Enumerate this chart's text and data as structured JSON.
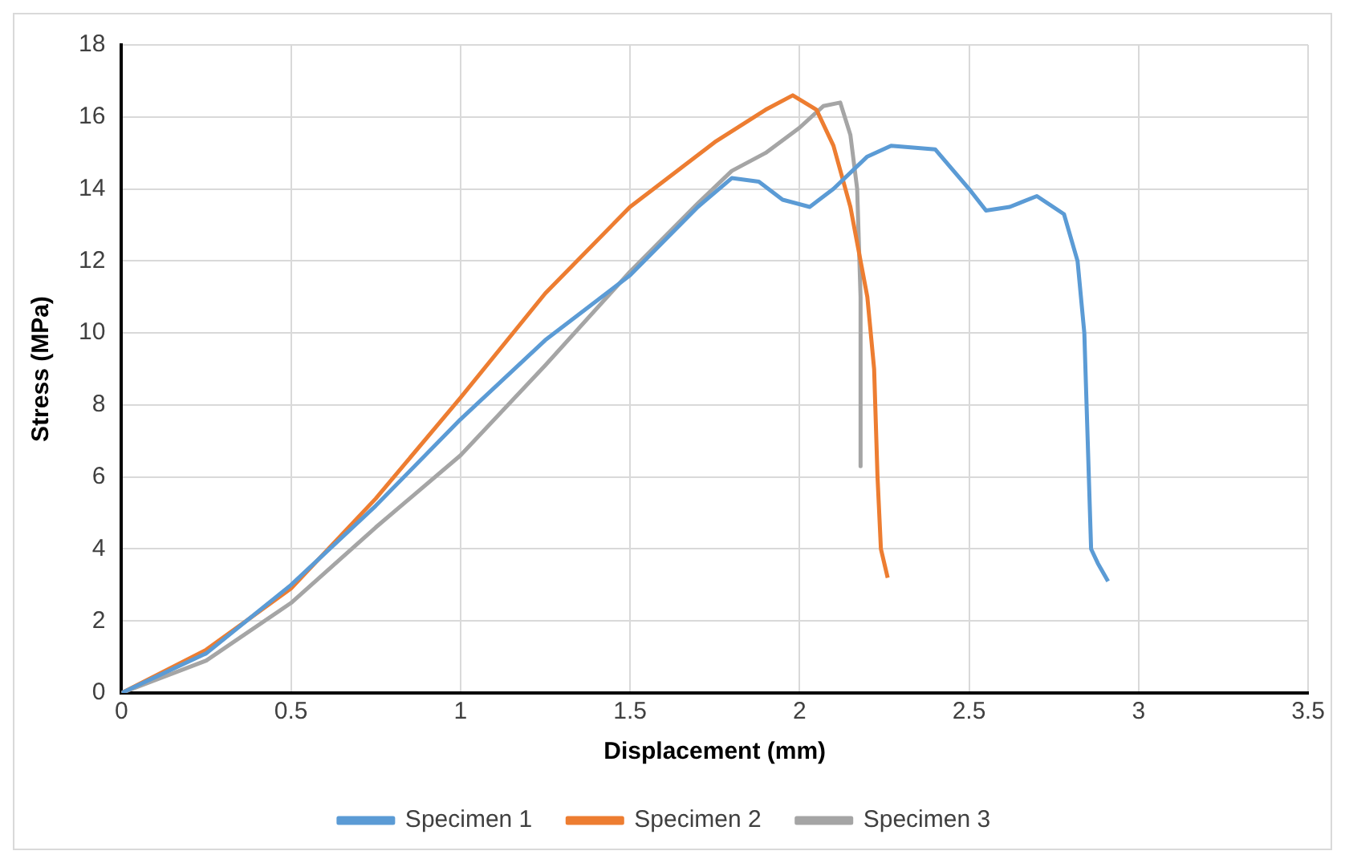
{
  "chart_data": {
    "type": "line",
    "xlabel": "Displacement (mm)",
    "ylabel": "Stress (MPa)",
    "xlim": [
      0,
      3.5
    ],
    "xticks": [
      0,
      0.5,
      1,
      1.5,
      2,
      2.5,
      3,
      3.5
    ],
    "ylim": [
      0,
      18
    ],
    "yticks": [
      0,
      2,
      4,
      6,
      8,
      10,
      12,
      14,
      16,
      18
    ],
    "grid": true,
    "legend": "bottom",
    "marker": "none",
    "line_style": "solid",
    "series": [
      {
        "name": "Specimen 1",
        "color": "#5b9bd5",
        "x": [
          0,
          0.25,
          0.5,
          0.75,
          1.0,
          1.25,
          1.5,
          1.7,
          1.8,
          1.88,
          1.95,
          2.03,
          2.1,
          2.2,
          2.27,
          2.4,
          2.5,
          2.55,
          2.62,
          2.7,
          2.78,
          2.82,
          2.84,
          2.85,
          2.86,
          2.88,
          2.91
        ],
        "values": [
          0,
          1.1,
          3.0,
          5.2,
          7.6,
          9.8,
          11.6,
          13.5,
          14.3,
          14.2,
          13.7,
          13.5,
          14.0,
          14.9,
          15.2,
          15.1,
          14.0,
          13.4,
          13.5,
          13.8,
          13.3,
          12.0,
          10.0,
          7.0,
          4.0,
          3.6,
          3.1
        ]
      },
      {
        "name": "Specimen 2",
        "color": "#ed7d31",
        "x": [
          0,
          0.25,
          0.5,
          0.75,
          1.0,
          1.25,
          1.5,
          1.75,
          1.9,
          1.98,
          2.05,
          2.1,
          2.15,
          2.2,
          2.22,
          2.23,
          2.24,
          2.26
        ],
        "values": [
          0,
          1.2,
          2.9,
          5.4,
          8.2,
          11.1,
          13.5,
          15.3,
          16.2,
          16.6,
          16.2,
          15.2,
          13.5,
          11.0,
          9.0,
          6.0,
          4.0,
          3.2
        ]
      },
      {
        "name": "Specimen 3",
        "color": "#a5a5a5",
        "x": [
          0,
          0.25,
          0.5,
          0.75,
          1.0,
          1.25,
          1.5,
          1.7,
          1.8,
          1.9,
          2.0,
          2.07,
          2.12,
          2.15,
          2.17,
          2.18,
          2.18
        ],
        "values": [
          0,
          0.9,
          2.5,
          4.6,
          6.6,
          9.1,
          11.7,
          13.6,
          14.5,
          15.0,
          15.7,
          16.3,
          16.4,
          15.5,
          14.0,
          11.0,
          6.3
        ]
      }
    ]
  }
}
